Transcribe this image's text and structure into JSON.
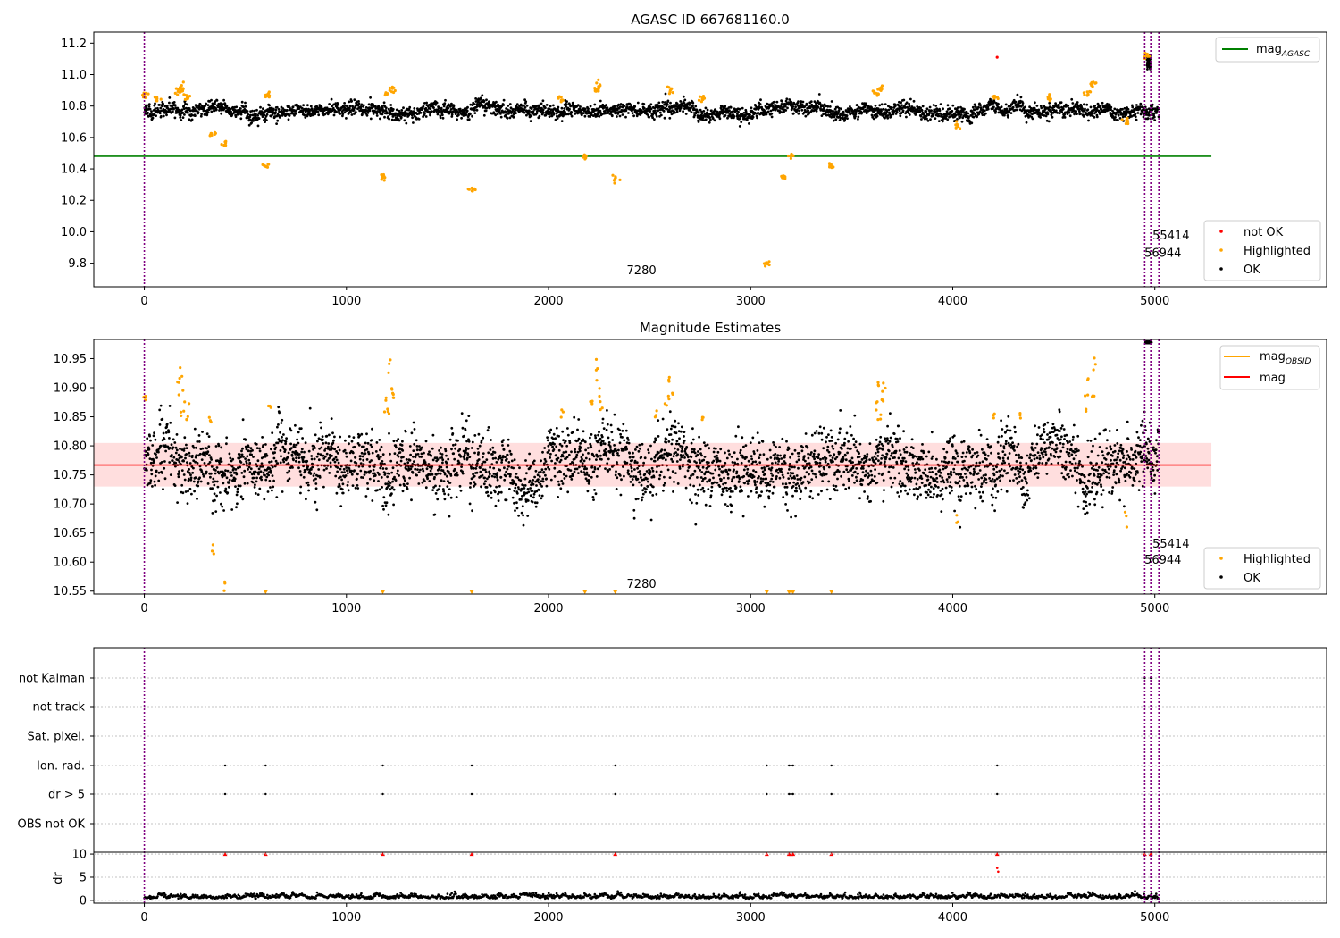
{
  "chart_data": [
    {
      "type": "scatter",
      "title": "AGASC ID 667681160.0",
      "xlabel": "",
      "ylabel": "",
      "xlim": [
        -250,
        5850
      ],
      "ylim": [
        9.65,
        11.27
      ],
      "x_ticks": [
        0,
        1000,
        2000,
        3000,
        4000,
        5000
      ],
      "y_ticks": [
        9.8,
        10.0,
        10.2,
        10.4,
        10.6,
        10.8,
        11.0,
        11.2
      ],
      "y_tick_labels": [
        "9.8",
        "10.0",
        "10.2",
        "10.4",
        "10.6",
        "10.8",
        "11.0",
        "11.2"
      ],
      "grid": false,
      "reference_line": {
        "label": "mag_AGASC",
        "value": 10.48,
        "x_range": [
          -250,
          5280
        ],
        "color": "#008000"
      },
      "ok_band": {
        "center": 10.77,
        "scatter": 0.025
      },
      "series": [
        {
          "name": "not OK",
          "color": "#ff0000",
          "points": [
            [
              4220,
              11.11
            ]
          ]
        },
        {
          "name": "Highlighted",
          "color": "#ffa500",
          "points": [
            [
              0,
              10.87
            ],
            [
              60,
              10.85
            ],
            [
              170,
              10.9
            ],
            [
              190,
              10.92
            ],
            [
              210,
              10.86
            ],
            [
              340,
              10.62
            ],
            [
              400,
              10.56
            ],
            [
              600,
              10.42
            ],
            [
              610,
              10.87
            ],
            [
              1180,
              10.34
            ],
            [
              1200,
              10.88
            ],
            [
              1230,
              10.9
            ],
            [
              1620,
              10.27
            ],
            [
              2060,
              10.84
            ],
            [
              2180,
              10.48
            ],
            [
              2230,
              10.9
            ],
            [
              2250,
              10.94
            ],
            [
              2330,
              10.34
            ],
            [
              2600,
              10.9
            ],
            [
              2760,
              10.85
            ],
            [
              3080,
              9.79
            ],
            [
              3170,
              10.35
            ],
            [
              3200,
              10.49
            ],
            [
              3400,
              10.42
            ],
            [
              3620,
              10.88
            ],
            [
              3640,
              10.92
            ],
            [
              4020,
              10.68
            ],
            [
              4210,
              10.85
            ],
            [
              4480,
              10.85
            ],
            [
              4660,
              10.88
            ],
            [
              4690,
              10.94
            ],
            [
              4860,
              10.7
            ],
            [
              4960,
              11.12
            ]
          ]
        },
        {
          "name": "OK",
          "color": "#000000",
          "points": []
        }
      ],
      "vertical_lines": {
        "color": "#800080",
        "x": [
          0,
          4950,
          4980,
          5020
        ]
      },
      "annotations": [
        {
          "text": "7280",
          "x": 2460,
          "y": 9.73
        },
        {
          "text": "55414",
          "x": 5080,
          "y": 9.95
        },
        {
          "text": "56944",
          "x": 5040,
          "y": 9.84
        }
      ],
      "legend_bottom": {
        "position": "lower-right",
        "entries": [
          "not OK",
          "Highlighted",
          "OK"
        ]
      },
      "legend_top": {
        "position": "upper-right",
        "entries": [
          "mag"
        ],
        "subscripts": [
          "AGASC"
        ]
      }
    },
    {
      "type": "scatter",
      "title": "Magnitude Estimates",
      "xlabel": "",
      "ylabel": "",
      "xlim": [
        -250,
        5850
      ],
      "ylim": [
        10.545,
        10.983
      ],
      "x_ticks": [
        0,
        1000,
        2000,
        3000,
        4000,
        5000
      ],
      "y_ticks": [
        10.55,
        10.6,
        10.65,
        10.7,
        10.75,
        10.8,
        10.85,
        10.9,
        10.95
      ],
      "y_tick_labels": [
        "10.55",
        "10.60",
        "10.65",
        "10.70",
        "10.75",
        "10.80",
        "10.85",
        "10.90",
        "10.95"
      ],
      "grid": false,
      "reference_line": {
        "label": "mag",
        "value": 10.767,
        "x_range": [
          -250,
          5280
        ],
        "color": "#ff0000"
      },
      "band": {
        "low": 10.73,
        "high": 10.805,
        "x_range": [
          -250,
          5280
        ]
      },
      "ok_band": {
        "center": 10.767,
        "scatter": 0.025
      },
      "series": [
        {
          "name": "Highlighted",
          "color": "#ffa500",
          "points": [
            [
              0,
              10.88
            ],
            [
              170,
              10.9
            ],
            [
              180,
              10.92
            ],
            [
              190,
              10.86
            ],
            [
              200,
              10.88
            ],
            [
              210,
              10.85
            ],
            [
              330,
              10.85
            ],
            [
              340,
              10.62
            ],
            [
              400,
              10.56
            ],
            [
              620,
              10.87
            ],
            [
              1200,
              10.88
            ],
            [
              1210,
              10.86
            ],
            [
              1220,
              10.9
            ],
            [
              1230,
              10.89
            ],
            [
              1215,
              10.93
            ],
            [
              2070,
              10.85
            ],
            [
              2220,
              10.87
            ],
            [
              2240,
              10.93
            ],
            [
              2250,
              10.9
            ],
            [
              2260,
              10.87
            ],
            [
              2530,
              10.85
            ],
            [
              2590,
              10.88
            ],
            [
              2600,
              10.91
            ],
            [
              2610,
              10.89
            ],
            [
              2760,
              10.85
            ],
            [
              3620,
              10.87
            ],
            [
              3630,
              10.91
            ],
            [
              3640,
              10.85
            ],
            [
              3650,
              10.88
            ],
            [
              3660,
              10.9
            ],
            [
              4020,
              10.67
            ],
            [
              4200,
              10.85
            ],
            [
              4330,
              10.85
            ],
            [
              4660,
              10.87
            ],
            [
              4670,
              10.91
            ],
            [
              4690,
              10.88
            ],
            [
              4700,
              10.93
            ],
            [
              4860,
              10.68
            ]
          ]
        },
        {
          "name": "OK",
          "color": "#000000",
          "points": []
        }
      ],
      "out_of_range_markers": {
        "color": "#ffa500",
        "x": [
          600,
          1180,
          1620,
          2180,
          2330,
          3080,
          3190,
          3200,
          3210,
          3400
        ]
      },
      "vertical_lines": {
        "color": "#800080",
        "x": [
          0,
          4950,
          4980,
          5020
        ]
      },
      "annotations": [
        {
          "text": "7280",
          "x": 2460,
          "y": 10.556
        },
        {
          "text": "55414",
          "x": 5080,
          "y": 10.625
        },
        {
          "text": "56944",
          "x": 5040,
          "y": 10.597
        }
      ],
      "legend_bottom": {
        "position": "lower-right",
        "entries": [
          "Highlighted",
          "OK"
        ]
      },
      "legend_top": {
        "position": "upper-right",
        "entries": [
          "mag",
          "mag"
        ],
        "subscripts": [
          "OBSID",
          ""
        ]
      }
    },
    {
      "type": "scatter",
      "title": "",
      "xlabel": "",
      "xlim": [
        -250,
        5850
      ],
      "x_ticks": [
        0,
        1000,
        2000,
        3000,
        4000,
        5000
      ],
      "flag_rows": [
        "not Kalman",
        "not track",
        "Sat. pixel.",
        "Ion. rad.",
        "dr > 5",
        "OBS not OK"
      ],
      "flag_points": {
        "not Kalman": [
          4950,
          4980
        ],
        "not track": [],
        "Sat. pixel.": [],
        "Ion. rad.": [
          400,
          600,
          1180,
          1620,
          2330,
          3080,
          3190,
          3200,
          3210,
          3400,
          4220
        ],
        "dr > 5": [
          400,
          600,
          1180,
          1620,
          2330,
          3080,
          3190,
          3200,
          3210,
          3400,
          4220
        ],
        "OBS not OK": []
      },
      "dr_panel": {
        "ylabel": "dr",
        "ylim": [
          -0.6,
          10.4
        ],
        "y_ticks": [
          0,
          5,
          10
        ],
        "y_tick_labels": [
          "0",
          "5",
          "10"
        ],
        "capped_markers": {
          "color": "#ff0000",
          "value": 10,
          "x": [
            400,
            600,
            1180,
            1620,
            2330,
            3080,
            3190,
            3200,
            3210,
            3400,
            4220,
            4950,
            4980
          ]
        },
        "red_points": [
          [
            4220,
            7.0
          ],
          [
            4225,
            6.2
          ]
        ]
      },
      "vertical_lines": {
        "color": "#800080",
        "x": [
          0,
          4950,
          4980,
          5020
        ]
      }
    }
  ]
}
